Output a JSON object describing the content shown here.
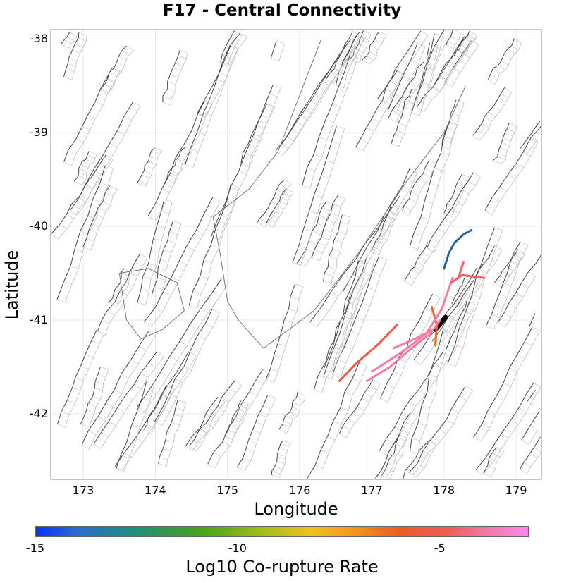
{
  "title": "F17 - Central Connectivity",
  "x_axis": {
    "label": "Longitude",
    "ticks": [
      "173",
      "174",
      "175",
      "176",
      "177",
      "178",
      "179"
    ],
    "range": [
      172.55,
      179.35
    ]
  },
  "y_axis": {
    "label": "Latitude",
    "ticks": [
      "-38",
      "-39",
      "-40",
      "-41",
      "-42"
    ],
    "range": [
      -42.7,
      -37.9
    ]
  },
  "colorbar": {
    "label": "Log10 Co-rupture Rate",
    "ticks": [
      "-15",
      "-10",
      "-5"
    ],
    "range": [
      -15,
      -2.8
    ]
  },
  "colors": {
    "selected_fault": "#000000",
    "blue": "#2166ac",
    "orange": "#ec6a1c",
    "red": "#f25c5c",
    "pink": "#f47aa8",
    "grid": "#e8e8e8"
  },
  "highlighted_ruptures": [
    {
      "name": "selected-fault",
      "color": "#000000",
      "path": [
        [
          177.88,
          -41.1
        ],
        [
          178.02,
          -40.97
        ]
      ]
    },
    {
      "name": "rupture-blue-north",
      "color": "#2166ac",
      "path": [
        [
          178.0,
          -40.45
        ],
        [
          178.07,
          -40.28
        ],
        [
          178.15,
          -40.17
        ],
        [
          178.28,
          -40.08
        ],
        [
          178.38,
          -40.04
        ]
      ]
    },
    {
      "name": "rupture-orange",
      "color": "#ec6a1c",
      "path": [
        [
          177.83,
          -40.86
        ],
        [
          177.9,
          -41.05
        ],
        [
          177.88,
          -41.27
        ]
      ]
    },
    {
      "name": "rupture-pink-coast",
      "color": "#f47aa8",
      "path": [
        [
          177.0,
          -41.55
        ],
        [
          177.4,
          -41.35
        ],
        [
          177.75,
          -41.15
        ],
        [
          177.97,
          -40.88
        ],
        [
          178.05,
          -40.7
        ],
        [
          178.12,
          -40.55
        ]
      ]
    },
    {
      "name": "rupture-pink-inner",
      "color": "#f47aa8",
      "path": [
        [
          176.93,
          -41.65
        ],
        [
          177.25,
          -41.5
        ],
        [
          177.55,
          -41.3
        ],
        [
          177.8,
          -41.15
        ],
        [
          177.95,
          -41.0
        ]
      ]
    },
    {
      "name": "rupture-red-branch",
      "color": "#f25c5c",
      "path": [
        [
          178.1,
          -40.6
        ],
        [
          178.25,
          -40.52
        ],
        [
          178.55,
          -40.55
        ]
      ]
    },
    {
      "name": "rupture-red-east",
      "color": "#f25c5c",
      "path": [
        [
          178.27,
          -40.38
        ],
        [
          178.2,
          -40.55
        ]
      ]
    },
    {
      "name": "rupture-red-south",
      "color": "#ec5a4a",
      "path": [
        [
          176.55,
          -41.65
        ],
        [
          176.8,
          -41.45
        ],
        [
          177.1,
          -41.25
        ],
        [
          177.35,
          -41.05
        ]
      ]
    },
    {
      "name": "rupture-pink-south",
      "color": "#f47aa8",
      "path": [
        [
          177.3,
          -41.3
        ],
        [
          177.6,
          -41.2
        ],
        [
          177.85,
          -41.1
        ]
      ]
    }
  ]
}
